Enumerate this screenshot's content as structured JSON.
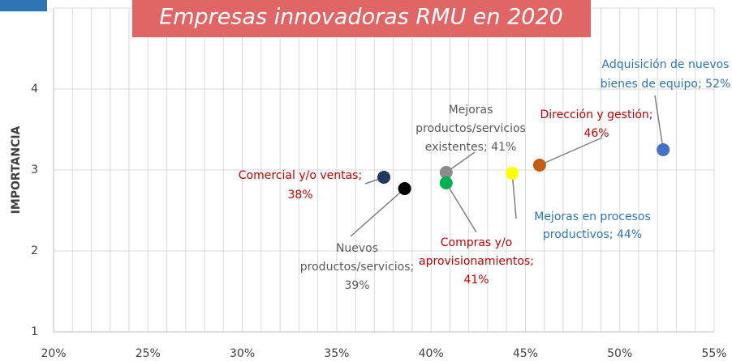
{
  "chart_data": {
    "type": "scatter",
    "title": "Empresas innovadoras RMU en 2020",
    "ylabel": "IMPORTANCIA",
    "xlim": [
      20,
      55
    ],
    "ylim": [
      1,
      5
    ],
    "xticks": [
      {
        "value": 20,
        "label": "20%"
      },
      {
        "value": 25,
        "label": "25%"
      },
      {
        "value": 30,
        "label": "30%"
      },
      {
        "value": 35,
        "label": "35%"
      },
      {
        "value": 40,
        "label": "40%"
      },
      {
        "value": 45,
        "label": "45%"
      },
      {
        "value": 50,
        "label": "50%"
      },
      {
        "value": 55,
        "label": "55%"
      }
    ],
    "yticks": [
      1,
      2,
      3,
      4,
      5
    ],
    "grid": true,
    "series": [
      {
        "label": [
          "Adquisición de nuevos",
          "bienes de equipo; 52%"
        ],
        "color": "#4472c4",
        "label_color": "#2e75b6",
        "x": [
          52.3
        ],
        "values": [
          3.25
        ]
      },
      {
        "label": [
          "Dirección y gestión;",
          "46%"
        ],
        "color": "#c55a11",
        "label_color": "#c00000",
        "x": [
          45.75
        ],
        "values": [
          3.06
        ]
      },
      {
        "label": [
          "Mejoras en  procesos",
          "productivos; 44%"
        ],
        "color": "#ffff00",
        "label_color": "#2e75b6",
        "x": [
          44.3
        ],
        "values": [
          2.96
        ]
      },
      {
        "label": [
          "Mejoras",
          "productos/servicios",
          "existentes; 41%"
        ],
        "color": "#8c8c8c",
        "label_color": "#595959",
        "x": [
          40.8
        ],
        "values": [
          2.97
        ]
      },
      {
        "label": [
          "Compras y/o",
          "aprovisionamientos;",
          "41%"
        ],
        "color": "#00b050",
        "label_color": "#c00000",
        "x": [
          40.8
        ],
        "values": [
          2.84
        ]
      },
      {
        "label": [
          "Nuevos",
          "productos/servicios;",
          "39%"
        ],
        "color": "#000000",
        "label_color": "#595959",
        "x": [
          38.6
        ],
        "values": [
          2.77
        ]
      },
      {
        "label": [
          "Comercial y/o ventas;",
          "38%"
        ],
        "color": "#1f3864",
        "label_color": "#c00000",
        "x": [
          37.5
        ],
        "values": [
          2.91
        ]
      }
    ]
  }
}
